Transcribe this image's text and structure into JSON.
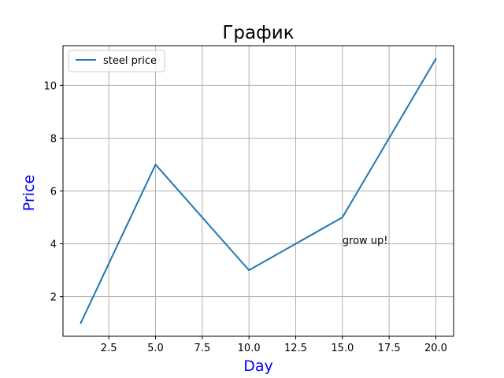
{
  "chart_data": {
    "type": "line",
    "title": "График",
    "xlabel": "Day",
    "ylabel": "Price",
    "xlim": [
      0.05,
      20.95
    ],
    "ylim": [
      0.5,
      11.5
    ],
    "xticks": [
      2.5,
      5.0,
      7.5,
      10.0,
      12.5,
      15.0,
      17.5,
      20.0
    ],
    "xtick_labels": [
      "2.5",
      "5.0",
      "7.5",
      "10.0",
      "12.5",
      "15.0",
      "17.5",
      "20.0"
    ],
    "yticks": [
      2,
      4,
      6,
      8,
      10
    ],
    "ytick_labels": [
      "2",
      "4",
      "6",
      "8",
      "10"
    ],
    "grid": true,
    "legend_position": "top-left",
    "series": [
      {
        "name": "steel price",
        "color": "#1f77b4",
        "x": [
          1,
          5,
          10,
          15,
          20
        ],
        "y": [
          1,
          7,
          3,
          5,
          11
        ]
      }
    ],
    "annotations": [
      {
        "text": "grow up!",
        "x": 15,
        "y": 4
      }
    ],
    "colors": {
      "axis_label": "#0000ff",
      "grid": "#b0b0b0"
    }
  }
}
